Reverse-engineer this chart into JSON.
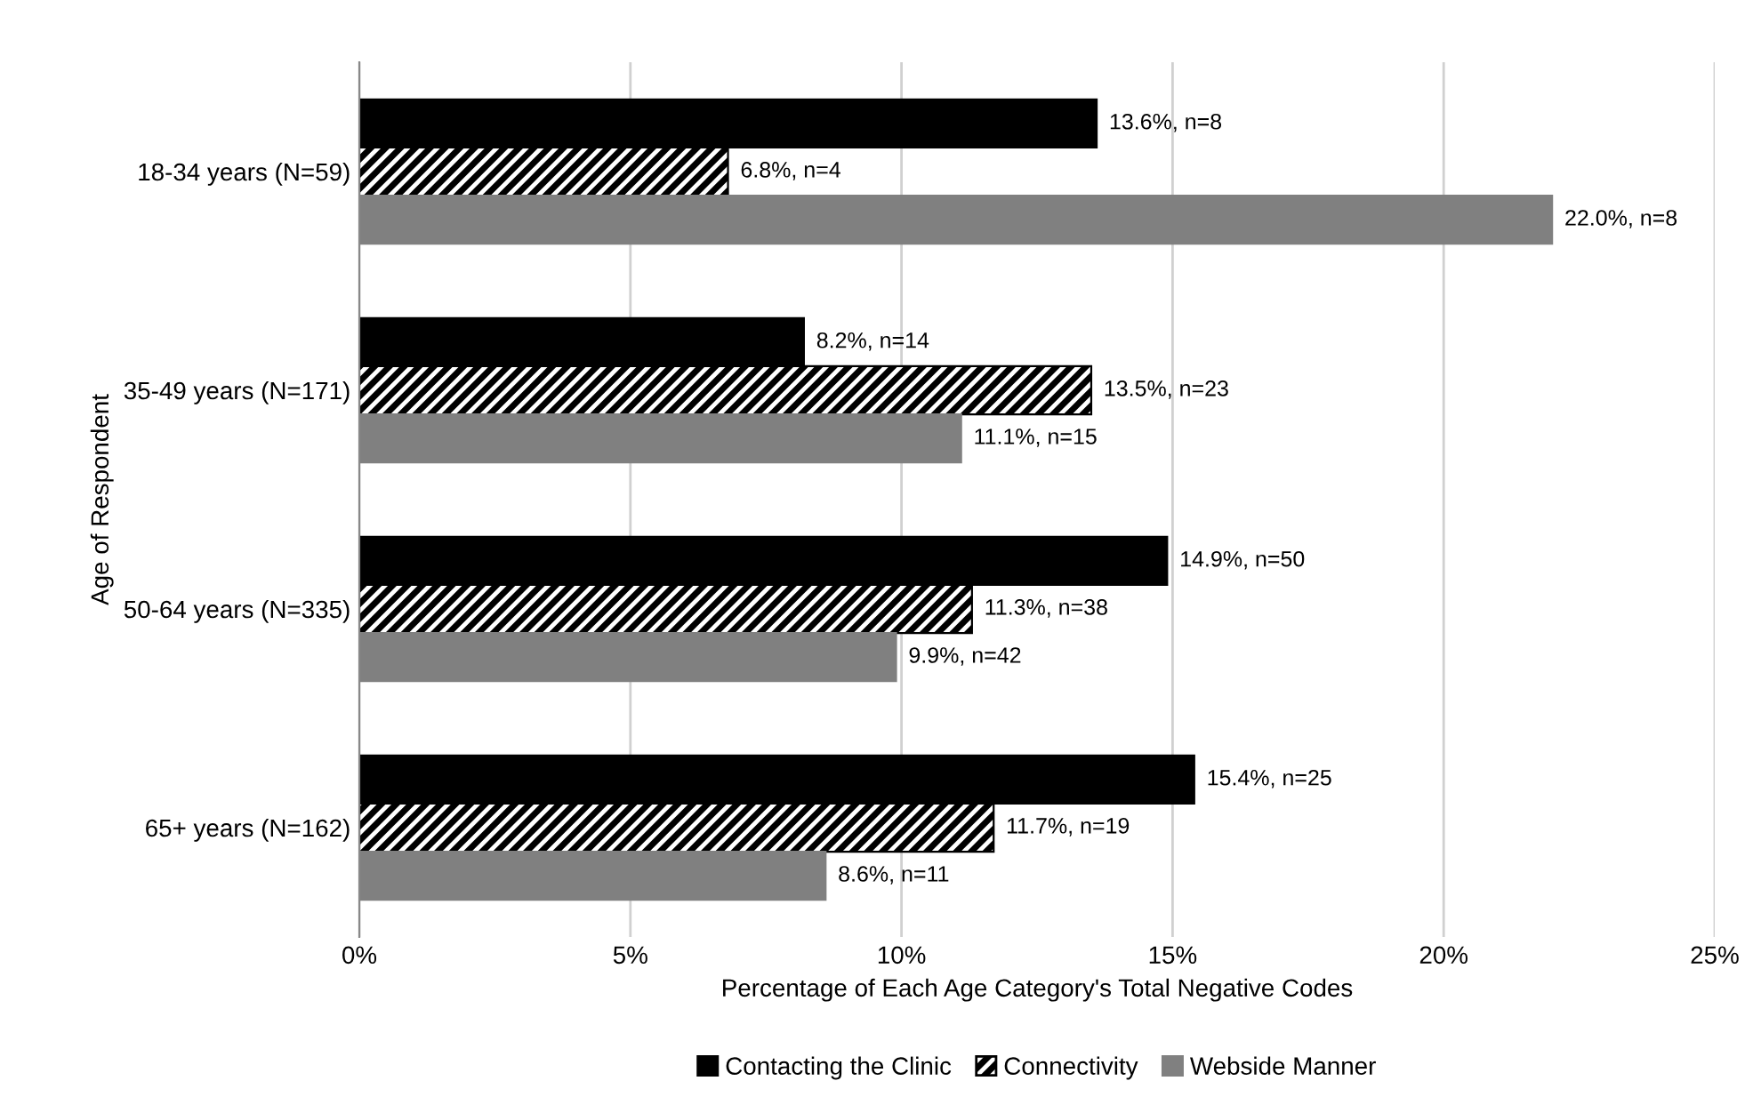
{
  "chart_data": {
    "type": "bar",
    "orientation": "horizontal",
    "xlabel": "Percentage of Each Age Category's Total Negative Codes",
    "ylabel": "Age of Respondent",
    "categories": [
      "18-34 years (N=59)",
      "35-49 years (N=171)",
      "50-64 years (N=335)",
      "65+ years (N=162)"
    ],
    "series": [
      {
        "name": "Contacting the Clinic",
        "color": "#000000",
        "values": [
          13.6,
          8.2,
          14.9,
          15.4
        ],
        "value_labels": [
          "13.6%, n=8",
          "8.2%, n=14",
          "14.9%, n=50",
          "15.4%, n=25"
        ]
      },
      {
        "name": "Connectivity",
        "color": "#000000",
        "values": [
          6.8,
          13.5,
          11.3,
          11.7
        ],
        "value_labels": [
          "6.8%, n=4",
          "13.5%, n=23",
          "11.3%, n=38",
          "11.7%, n=19"
        ]
      },
      {
        "name": "Webside Manner",
        "color": "#808080",
        "values": [
          22.0,
          11.1,
          9.9,
          8.6
        ],
        "value_labels": [
          "22.0%, n=8",
          "11.1%, n=15",
          "9.9%, n=42",
          "8.6%, n=11"
        ]
      }
    ],
    "xlim": [
      0,
      25
    ],
    "xticks": [
      {
        "value": 0,
        "label": "0%"
      },
      {
        "value": 5,
        "label": "5%"
      },
      {
        "value": 10,
        "label": "10%"
      },
      {
        "value": 15,
        "label": "15%"
      },
      {
        "value": 20,
        "label": "20%"
      },
      {
        "value": 25,
        "label": "25%"
      }
    ],
    "grid": "x",
    "legend": "bottom"
  }
}
